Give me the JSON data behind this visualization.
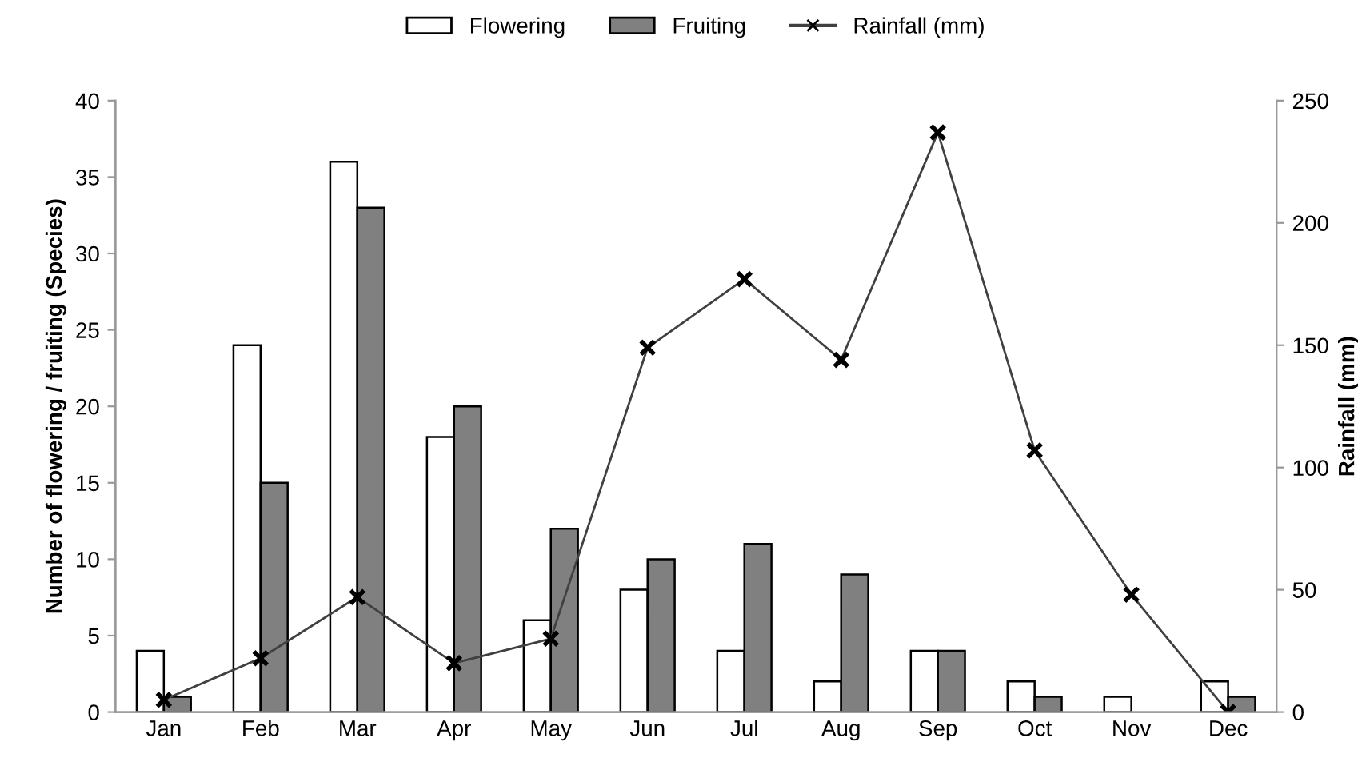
{
  "chart_data": {
    "type": "bar",
    "categories": [
      "Jan",
      "Feb",
      "Mar",
      "Apr",
      "May",
      "Jun",
      "Jul",
      "Aug",
      "Sep",
      "Oct",
      "Nov",
      "Dec"
    ],
    "ylabel": "Number of flowering / fruiting (Species)",
    "y2label": "Rainfall (mm)",
    "series": [
      {
        "name": "Flowering",
        "color": "#ffffff",
        "values": [
          4,
          24,
          36,
          18,
          6,
          8,
          4,
          2,
          4,
          2,
          1,
          2
        ]
      },
      {
        "name": "Fruiting",
        "color": "#808080",
        "values": [
          1,
          15,
          33,
          20,
          12,
          10,
          11,
          9,
          4,
          1,
          0,
          1
        ]
      },
      {
        "name": "Rainfall (mm)",
        "type": "line",
        "axis": "y2",
        "color": "#404040",
        "marker": "cross",
        "values": [
          5,
          22,
          47,
          20,
          30,
          149,
          177,
          144,
          237,
          107,
          48,
          0
        ]
      }
    ],
    "ylim": [
      0,
      40
    ],
    "yticks": [
      0,
      5,
      10,
      15,
      20,
      25,
      30,
      35,
      40
    ],
    "y2lim": [
      0,
      250
    ],
    "y2ticks": [
      0,
      50,
      100,
      150,
      200,
      250
    ],
    "legend": "top",
    "grid": false
  }
}
